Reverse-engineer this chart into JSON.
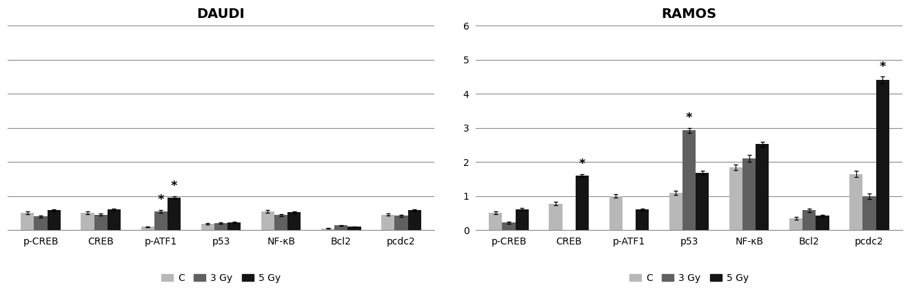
{
  "daudi": {
    "title": "DAUDI",
    "categories": [
      "p-CREB",
      "CREB",
      "p-ATF1",
      "p53",
      "NF-κB",
      "Bcl2",
      "pcdc2"
    ],
    "C": [
      0.5,
      0.5,
      0.1,
      0.18,
      0.55,
      0.05,
      0.45
    ],
    "3Gy": [
      0.4,
      0.45,
      0.55,
      0.2,
      0.44,
      0.14,
      0.42
    ],
    "5Gy": [
      0.58,
      0.6,
      0.95,
      0.23,
      0.52,
      0.1,
      0.58
    ],
    "C_err": [
      0.04,
      0.04,
      0.01,
      0.02,
      0.04,
      0.01,
      0.03
    ],
    "3Gy_err": [
      0.03,
      0.03,
      0.04,
      0.02,
      0.03,
      0.01,
      0.03
    ],
    "5Gy_err": [
      0.03,
      0.03,
      0.04,
      0.02,
      0.03,
      0.01,
      0.03
    ],
    "asterisks_3gy": [
      2
    ],
    "asterisks_5gy": [
      2
    ],
    "ylim": [
      0,
      6
    ],
    "ytick_vals": [
      0,
      1,
      2,
      3,
      4,
      5,
      6
    ],
    "has_yaxis_labels": false
  },
  "ramos": {
    "title": "RAMOS",
    "categories": [
      "p-CREB",
      "CREB",
      "p-ATF1",
      "p53",
      "NF-κB",
      "Bcl2",
      "pcdc2"
    ],
    "C": [
      0.5,
      0.78,
      1.0,
      1.1,
      1.85,
      0.35,
      1.65
    ],
    "3Gy": [
      0.22,
      0.0,
      0.0,
      2.93,
      2.1,
      0.58,
      1.0
    ],
    "5Gy": [
      0.62,
      1.6,
      0.6,
      1.68,
      2.52,
      0.42,
      4.4
    ],
    "C_err": [
      0.04,
      0.05,
      0.05,
      0.06,
      0.08,
      0.04,
      0.09
    ],
    "3Gy_err": [
      0.03,
      0.0,
      0.0,
      0.07,
      0.1,
      0.05,
      0.08
    ],
    "5Gy_err": [
      0.04,
      0.05,
      0.03,
      0.06,
      0.08,
      0.03,
      0.1
    ],
    "asterisks_3gy": [
      3
    ],
    "asterisks_5gy": [
      1,
      6
    ],
    "ylim": [
      0,
      6
    ],
    "ytick_vals": [
      0,
      1,
      2,
      3,
      4,
      5,
      6
    ],
    "has_yaxis_labels": true
  },
  "colors": {
    "C": "#b8b8b8",
    "3Gy": "#606060",
    "5Gy": "#151515"
  },
  "bar_width": 0.22,
  "figsize": [
    13.2,
    4.4
  ],
  "dpi": 100
}
